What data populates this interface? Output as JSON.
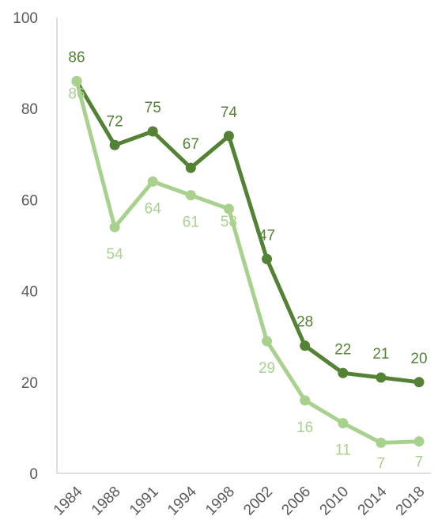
{
  "chart_data": {
    "type": "line",
    "title": "",
    "xlabel": "",
    "ylabel": "",
    "ylim": [
      0,
      100
    ],
    "yticks": [
      0,
      20,
      40,
      60,
      80,
      100
    ],
    "grid": false,
    "legend": "none",
    "categories": [
      "1984",
      "1988",
      "1991",
      "1994",
      "1998",
      "2002",
      "2006",
      "2010",
      "2014",
      "2018"
    ],
    "series": [
      {
        "color": "#548235",
        "label_position": "above",
        "values": [
          86,
          72,
          75,
          67,
          74,
          47,
          28,
          22,
          21,
          20
        ],
        "labels": [
          "86",
          "72",
          "75",
          "67",
          "74",
          "47",
          "28",
          "22",
          "21",
          "20"
        ]
      },
      {
        "color": "#A9D18E",
        "label_position": "below",
        "values": [
          86,
          54,
          64,
          61,
          58,
          29,
          16,
          11,
          6.7,
          7
        ],
        "labels": [
          "86",
          "54",
          "64",
          "61",
          "58",
          "29",
          "16",
          "11",
          "7",
          "7"
        ]
      }
    ]
  }
}
